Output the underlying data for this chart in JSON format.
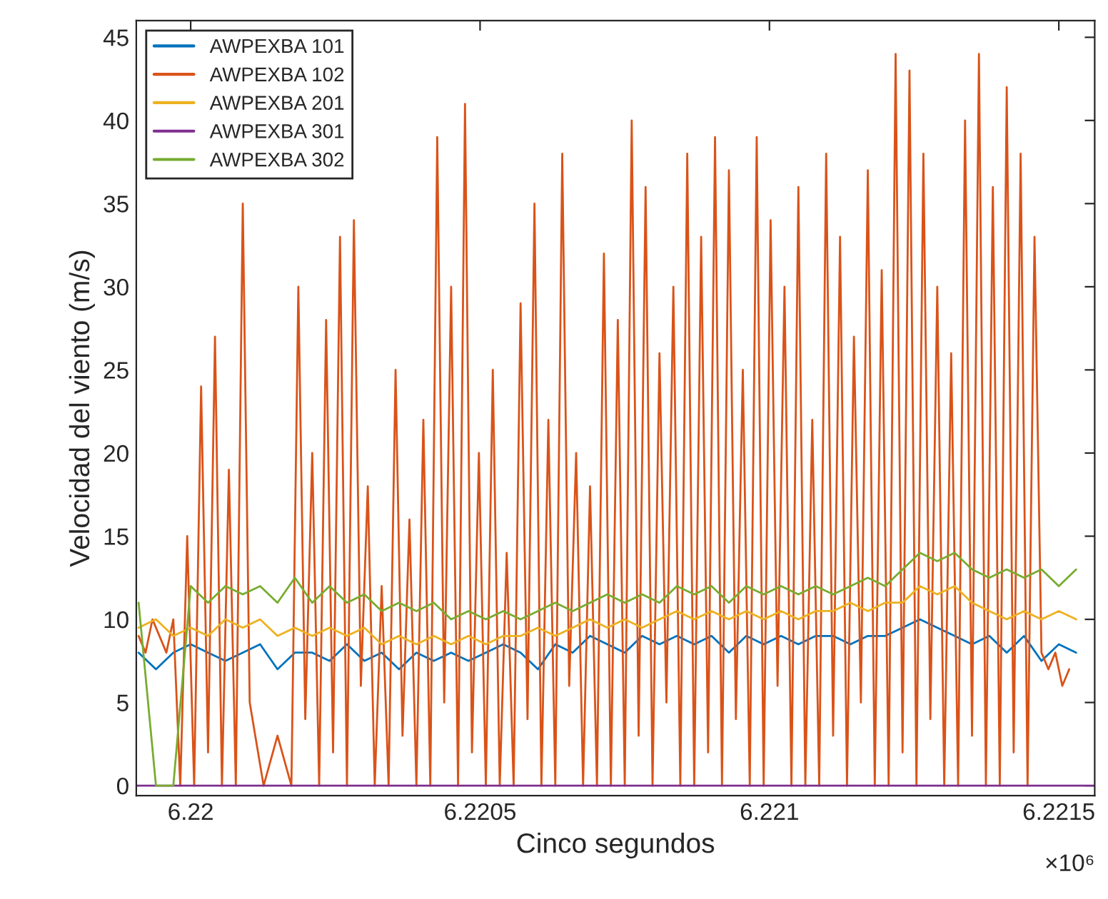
{
  "chart_data": {
    "type": "line",
    "xlabel": "Cinco segundos",
    "ylabel": "Velocidad del viento (m/s)",
    "annotations": [
      "×10⁶"
    ],
    "xlim": [
      6.219906,
      6.221562
    ],
    "ylim": [
      -0.6,
      46
    ],
    "xticks": [
      6.22,
      6.2205,
      6.221,
      6.2215
    ],
    "yticks": [
      0,
      5,
      10,
      15,
      20,
      25,
      30,
      35,
      40,
      45
    ],
    "grid": false,
    "legend": "top left",
    "marker": "none",
    "line_style": "solid",
    "x": [
      6.21991,
      6.21994,
      6.21997,
      6.22,
      6.22003,
      6.22006,
      6.22009,
      6.22012,
      6.22015,
      6.22018,
      6.22021,
      6.22024,
      6.22027,
      6.2203,
      6.22033,
      6.22036,
      6.22039,
      6.22042,
      6.22045,
      6.22048,
      6.22051,
      6.22054,
      6.22057,
      6.2206,
      6.22063,
      6.22066,
      6.22069,
      6.22072,
      6.22075,
      6.22078,
      6.22081,
      6.22084,
      6.22087,
      6.2209,
      6.22093,
      6.22096,
      6.22099,
      6.22102,
      6.22105,
      6.22108,
      6.22111,
      6.22114,
      6.22117,
      6.2212,
      6.22123,
      6.22126,
      6.22129,
      6.22132,
      6.22135,
      6.22138,
      6.22141,
      6.22144,
      6.22147,
      6.2215,
      6.22153
    ],
    "series": [
      {
        "name": "AWPEXBA 101",
        "color": "#0072bd",
        "values": [
          8,
          7,
          8,
          8.5,
          8,
          7.5,
          8,
          8.5,
          7,
          8,
          8,
          7.5,
          8.5,
          7.5,
          8,
          7,
          8,
          7.5,
          8,
          7.5,
          8,
          8.5,
          8,
          7,
          8.5,
          8,
          9,
          8.5,
          8,
          9,
          8.5,
          9,
          8.5,
          9,
          8,
          9,
          8.5,
          9,
          8.5,
          9,
          9,
          8.5,
          9,
          9,
          9.5,
          10,
          9.5,
          9,
          8.5,
          9,
          8,
          9,
          7.5,
          8.5,
          8
        ]
      },
      {
        "name": "AWPEXBA 102",
        "color": "#d95319",
        "x": [
          6.21991,
          6.219922,
          6.219934,
          6.219946,
          6.219958,
          6.21997,
          6.219982,
          6.219994,
          6.220006,
          6.220018,
          6.22003,
          6.220042,
          6.220054,
          6.220066,
          6.220078,
          6.22009,
          6.220102,
          6.220114,
          6.220126,
          6.220138,
          6.22015,
          6.220162,
          6.220174,
          6.220186,
          6.220198,
          6.22021,
          6.220222,
          6.220234,
          6.220246,
          6.220258,
          6.22027,
          6.220282,
          6.220294,
          6.220306,
          6.220318,
          6.22033,
          6.220342,
          6.220354,
          6.220366,
          6.220378,
          6.22039,
          6.220402,
          6.220414,
          6.220426,
          6.220438,
          6.22045,
          6.220462,
          6.220474,
          6.220486,
          6.220498,
          6.22051,
          6.220522,
          6.220534,
          6.220546,
          6.220558,
          6.22057,
          6.220582,
          6.220594,
          6.220606,
          6.220618,
          6.22063,
          6.220642,
          6.220654,
          6.220666,
          6.220678,
          6.22069,
          6.220702,
          6.220714,
          6.220726,
          6.220738,
          6.22075,
          6.220762,
          6.220774,
          6.220786,
          6.220798,
          6.22081,
          6.220822,
          6.220834,
          6.220846,
          6.220858,
          6.22087,
          6.220882,
          6.220894,
          6.220906,
          6.220918,
          6.22093,
          6.220942,
          6.220954,
          6.220966,
          6.220978,
          6.22099,
          6.221002,
          6.221014,
          6.221026,
          6.221038,
          6.22105,
          6.221062,
          6.221074,
          6.221086,
          6.221098,
          6.22111,
          6.221122,
          6.221134,
          6.221146,
          6.221158,
          6.22117,
          6.221182,
          6.221194,
          6.221206,
          6.221218,
          6.22123,
          6.221242,
          6.221254,
          6.221266,
          6.221278,
          6.22129,
          6.221302,
          6.221314,
          6.221326,
          6.221338,
          6.22135,
          6.221362,
          6.221374,
          6.221386,
          6.221398,
          6.22141,
          6.221422,
          6.221434,
          6.221446,
          6.221458,
          6.22147,
          6.221482,
          6.221494,
          6.221506,
          6.221518
        ],
        "values": [
          9,
          8,
          10,
          9,
          8,
          10,
          0,
          15,
          0,
          24,
          2,
          27,
          0,
          19,
          0,
          35,
          5,
          null,
          0,
          null,
          3,
          null,
          0,
          30,
          4,
          20,
          0,
          28,
          2,
          33,
          0,
          34,
          6,
          18,
          0,
          12,
          0,
          25,
          3,
          16,
          0,
          22,
          0,
          39,
          5,
          30,
          0,
          41,
          2,
          20,
          0,
          25,
          0,
          14,
          0,
          29,
          4,
          35,
          0,
          22,
          0,
          38,
          6,
          20,
          0,
          18,
          0,
          32,
          0,
          28,
          0,
          40,
          3,
          36,
          0,
          26,
          5,
          30,
          0,
          38,
          0,
          33,
          2,
          39,
          0,
          37,
          4,
          25,
          0,
          39,
          0,
          34,
          6,
          30,
          0,
          36,
          0,
          22,
          0,
          38,
          3,
          33,
          0,
          27,
          5,
          37,
          0,
          31,
          0,
          44,
          2,
          43,
          0,
          38,
          4,
          30,
          0,
          26,
          0,
          40,
          3,
          44,
          0,
          36,
          0,
          42,
          2,
          38,
          0,
          33,
          8,
          7,
          8,
          6,
          7
        ]
      },
      {
        "name": "AWPEXBA 201",
        "color": "#edb120",
        "values": [
          9.5,
          10,
          9,
          9.5,
          9,
          10,
          9.5,
          10,
          9,
          9.5,
          9,
          9.5,
          9,
          9.5,
          8.5,
          9,
          8.5,
          9,
          8.5,
          9,
          8.5,
          9,
          9,
          9.5,
          9,
          9.5,
          10,
          9.5,
          10,
          9.5,
          10,
          10.5,
          10,
          10.5,
          10,
          10.5,
          10,
          10.5,
          10,
          10.5,
          10.5,
          11,
          10.5,
          11,
          11,
          12,
          11.5,
          12,
          11,
          10.5,
          10,
          10.5,
          10,
          10.5,
          10
        ]
      },
      {
        "name": "AWPEXBA 301",
        "color": "#7e2f8e",
        "x": [
          6.219906,
          6.221562
        ],
        "values": [
          0,
          0
        ]
      },
      {
        "name": "AWPEXBA 302",
        "color": "#77ac30",
        "values": [
          11,
          0,
          0,
          12,
          11,
          12,
          11.5,
          12,
          11,
          12.5,
          11,
          12,
          11,
          11.5,
          10.5,
          11,
          10.5,
          11,
          10,
          10.5,
          10,
          10.5,
          10,
          10.5,
          11,
          10.5,
          11,
          11.5,
          11,
          11.5,
          11,
          12,
          11.5,
          12,
          11,
          12,
          11.5,
          12,
          11.5,
          12,
          11.5,
          12,
          12.5,
          12,
          13,
          14,
          13.5,
          14,
          13,
          12.5,
          13,
          12.5,
          13,
          12,
          13
        ]
      }
    ]
  }
}
